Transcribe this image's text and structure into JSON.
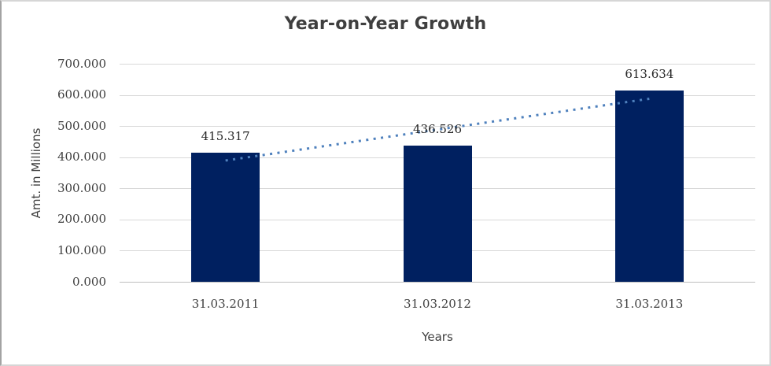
{
  "chart_data": {
    "type": "bar",
    "title": "Year-on-Year Growth",
    "xlabel": "Years",
    "ylabel": "Amt. in Millions",
    "categories": [
      "31.03.2011",
      "31.03.2012",
      "31.03.2013"
    ],
    "values": [
      415.317,
      436.526,
      613.634
    ],
    "data_labels": [
      "415.317",
      "436.526",
      "613.634"
    ],
    "ylim": [
      0,
      700
    ],
    "ytick_values": [
      0,
      100,
      200,
      300,
      400,
      500,
      600,
      700
    ],
    "ytick_labels": [
      "0.000",
      "100.000",
      "200.000",
      "300.000",
      "400.000",
      "500.000",
      "600.000",
      "700.000"
    ],
    "grid": true,
    "legend": "none",
    "trendline": {
      "type": "linear",
      "style": "dotted"
    },
    "colors": {
      "bar": "#002060",
      "trendline": "#4F81BD",
      "gridline": "#d9d9d9",
      "axis_line": "#bfbfbf",
      "title_text": "#3f3f3f",
      "tick_text": "#3f3f3f",
      "data_label_text": "#262626"
    }
  }
}
